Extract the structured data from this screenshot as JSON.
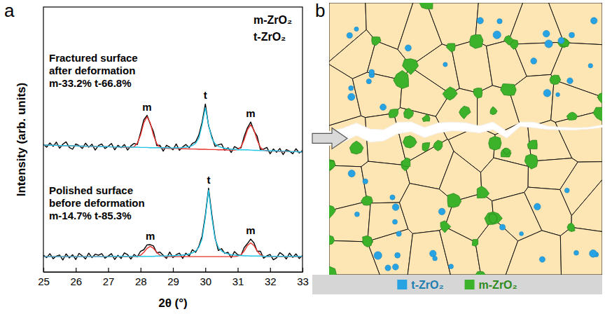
{
  "chart_data": {
    "type": "line",
    "panel_label": "a",
    "x_label": "2θ (°)",
    "y_label": "Intensity (arb. units)",
    "xlim": [
      25,
      33
    ],
    "xticks": [
      25,
      26,
      27,
      28,
      29,
      30,
      31,
      32,
      33
    ],
    "ylim": [
      0,
      100
    ],
    "tick_labels": "x",
    "x": [
      25,
      25.1,
      25.2,
      25.3,
      25.4,
      25.5,
      25.6,
      25.7,
      25.8,
      25.9,
      26,
      26.1,
      26.2,
      26.3,
      26.4,
      26.5,
      26.6,
      26.7,
      26.8,
      26.9,
      27,
      27.1,
      27.2,
      27.3,
      27.4,
      27.5,
      27.6,
      27.7,
      27.8,
      27.9,
      28,
      28.1,
      28.2,
      28.3,
      28.4,
      28.5,
      28.6,
      28.7,
      28.8,
      28.9,
      29,
      29.1,
      29.2,
      29.3,
      29.4,
      29.5,
      29.6,
      29.7,
      29.8,
      29.9,
      30,
      30.1,
      30.2,
      30.3,
      30.4,
      30.5,
      30.6,
      30.7,
      30.8,
      30.9,
      31,
      31.1,
      31.2,
      31.3,
      31.4,
      31.5,
      31.6,
      31.7,
      31.8,
      31.9,
      32,
      32.1,
      32.2,
      32.3,
      32.4,
      32.5,
      32.6,
      32.7,
      32.8,
      32.9,
      33
    ],
    "series": [
      {
        "color": "#000000",
        "line_style": "solid",
        "values": [
          48.2,
          47.1,
          48.7,
          47.4,
          49.0,
          46.7,
          48.2,
          49.1,
          47.0,
          46.3,
          48.3,
          47.7,
          46.6,
          48.6,
          47.1,
          48.2,
          46.0,
          47.7,
          48.3,
          46.6,
          47.4,
          48.5,
          46.1,
          47.8,
          46.9,
          48.1,
          46.0,
          47.6,
          48.5,
          48.1,
          52.6,
          57.4,
          59.1,
          55.8,
          52.9,
          47.7,
          47.8,
          45.6,
          47.8,
          47.1,
          46.1,
          48.3,
          45.9,
          47.2,
          48.1,
          46.9,
          48.5,
          49.1,
          51.7,
          56.5,
          63.4,
          55.2,
          51.1,
          47.4,
          48.0,
          48.3,
          45.9,
          46.9,
          45.1,
          47.3,
          46.6,
          46.8,
          51.2,
          54.4,
          56.6,
          53.3,
          51.2,
          46.2,
          46.4,
          47.0,
          44.6,
          46.4,
          45.2,
          46.6,
          44.3,
          46.2,
          45.6,
          44.6,
          46.5,
          44.9,
          45.8
        ]
      },
      {
        "color": "#e8302a",
        "line_style": "solid",
        "values": [
          47.9,
          47.9,
          47.8,
          47.8,
          47.8,
          47.7,
          47.7,
          47.7,
          47.6,
          47.6,
          47.6,
          47.5,
          47.5,
          47.5,
          47.4,
          47.4,
          47.4,
          47.3,
          47.3,
          47.3,
          47.3,
          47.2,
          47.2,
          47.2,
          47.1,
          47.1,
          47.1,
          47.0,
          47.3,
          48.6,
          51.7,
          56.3,
          58.6,
          56.2,
          51.6,
          48.4,
          47.0,
          46.7,
          46.7,
          46.6,
          46.6,
          46.6,
          46.5,
          46.5,
          46.5,
          46.4,
          46.4,
          46.4,
          46.3,
          46.3,
          46.3,
          46.2,
          46.2,
          46.2,
          46.1,
          46.1,
          46.1,
          46.0,
          46.0,
          46.0,
          46.2,
          47.2,
          49.9,
          53.7,
          55.5,
          53.6,
          49.8,
          47.0,
          46.0,
          45.7,
          45.6,
          45.6,
          45.6,
          45.5,
          45.5,
          45.5,
          45.4,
          45.4,
          45.4,
          45.3,
          45.3
        ]
      },
      {
        "color": "#22c3e6",
        "line_style": "solid",
        "values": [
          47.9,
          47.9,
          47.8,
          47.8,
          47.8,
          47.7,
          47.7,
          47.7,
          47.6,
          47.6,
          47.6,
          47.5,
          47.5,
          47.5,
          47.4,
          47.4,
          47.4,
          47.3,
          47.3,
          47.3,
          47.3,
          47.2,
          47.2,
          47.2,
          47.1,
          47.2,
          47.2,
          47.1,
          47.1,
          47.1,
          47.0,
          47.0,
          47.0,
          46.9,
          46.9,
          46.9,
          46.9,
          46.9,
          46.9,
          46.8,
          46.8,
          46.9,
          46.8,
          47.0,
          47.1,
          47.3,
          47.7,
          48.6,
          50.5,
          55.6,
          62.0,
          55.5,
          50.4,
          48.4,
          47.4,
          47.0,
          46.7,
          46.5,
          46.3,
          46.3,
          46.1,
          46.1,
          46.1,
          46.1,
          46.0,
          45.9,
          45.9,
          45.8,
          45.8,
          45.8,
          45.7,
          45.7,
          45.7,
          45.6,
          45.6,
          45.6,
          45.4,
          45.4,
          45.4,
          45.3,
          45.3
        ]
      },
      {
        "color": "#000000",
        "line_style": "solid",
        "values": [
          6.3,
          5.4,
          6.9,
          5.0,
          6.0,
          6.4,
          4.5,
          6.8,
          5.3,
          6.5,
          4.7,
          7.0,
          6.1,
          4.9,
          7.1,
          5.4,
          6.7,
          6.3,
          6.9,
          5.2,
          6.0,
          6.9,
          4.7,
          6.3,
          5.1,
          7.2,
          6.5,
          4.9,
          6.6,
          5.7,
          7.8,
          8.4,
          10.2,
          10.3,
          9.8,
          7.2,
          7.5,
          6.3,
          5.1,
          7.5,
          5.4,
          6.5,
          7.1,
          5.1,
          7.1,
          6.0,
          8.4,
          7.4,
          9.7,
          13.5,
          21.4,
          31.6,
          21.7,
          13.0,
          8.1,
          8.8,
          7.0,
          7.4,
          5.4,
          7.7,
          6.5,
          6.2,
          9.2,
          10.7,
          12.4,
          11.0,
          7.8,
          7.8,
          5.2,
          6.1,
          6.6,
          4.6,
          5.3,
          7.3,
          6.4,
          4.9,
          7.1,
          5.5,
          6.8,
          5.1,
          6.2
        ]
      },
      {
        "color": "#e8302a",
        "line_style": "solid",
        "values": [
          5.8,
          5.8,
          5.8,
          5.8,
          5.8,
          5.8,
          5.8,
          5.8,
          5.8,
          5.8,
          5.8,
          5.8,
          5.8,
          5.8,
          5.8,
          5.8,
          5.8,
          5.8,
          5.8,
          5.8,
          5.8,
          5.8,
          5.8,
          5.8,
          5.8,
          5.8,
          5.8,
          5.8,
          5.8,
          5.9,
          6.3,
          7.4,
          8.9,
          9.7,
          8.9,
          7.4,
          6.3,
          5.9,
          5.8,
          5.8,
          5.8,
          5.8,
          5.8,
          5.8,
          5.8,
          5.8,
          5.8,
          5.8,
          5.8,
          5.8,
          5.8,
          5.8,
          5.8,
          5.8,
          5.8,
          5.8,
          5.8,
          5.8,
          5.8,
          5.8,
          6.0,
          6.5,
          7.9,
          10.0,
          11.0,
          10.0,
          7.9,
          6.5,
          6.0,
          5.8,
          5.8,
          5.8,
          5.8,
          5.8,
          5.8,
          5.8,
          5.8,
          5.8,
          5.8,
          5.8,
          5.8
        ]
      },
      {
        "color": "#22c3e6",
        "line_style": "solid",
        "values": [
          5.8,
          5.8,
          5.8,
          5.8,
          5.8,
          5.8,
          5.8,
          5.8,
          5.8,
          5.8,
          5.8,
          5.8,
          5.8,
          5.8,
          5.8,
          5.8,
          5.8,
          5.8,
          5.8,
          5.8,
          5.8,
          5.9,
          5.9,
          5.9,
          5.9,
          5.9,
          5.9,
          5.9,
          5.9,
          5.9,
          5.9,
          5.9,
          5.9,
          5.9,
          5.9,
          6.0,
          6.0,
          6.0,
          6.0,
          6.1,
          6.1,
          6.2,
          6.2,
          6.4,
          6.5,
          6.8,
          7.2,
          7.9,
          9.3,
          12.5,
          20.6,
          30.9,
          20.6,
          12.5,
          9.3,
          7.9,
          7.2,
          6.8,
          6.5,
          6.4,
          6.2,
          6.2,
          6.1,
          6.1,
          6.0,
          6.0,
          6.0,
          6.0,
          5.9,
          5.9,
          5.9,
          5.9,
          5.9,
          5.9,
          5.9,
          5.9,
          5.9,
          5.9,
          5.9,
          5.9,
          5.9
        ]
      }
    ],
    "phase_labels": [
      "m-ZrO₂",
      "t-ZrO₂"
    ],
    "samples": [
      {
        "label": [
          "Fractured surface",
          "after deformation"
        ],
        "fractions": "m-33.2% t-66.8%"
      },
      {
        "label": [
          "Polished surface",
          "before deformation"
        ],
        "fractions": "m-14.7% t-85.3%"
      }
    ],
    "peak_labels": [
      {
        "text": "m",
        "x": 28.2,
        "y": 59.1
      },
      {
        "text": "t",
        "x": 30.0,
        "y": 63.4
      },
      {
        "text": "m",
        "x": 31.4,
        "y": 56.6
      },
      {
        "text": "m",
        "x": 28.3,
        "y": 10.3
      },
      {
        "text": "t",
        "x": 30.1,
        "y": 31.6
      },
      {
        "text": "m",
        "x": 31.4,
        "y": 12.4
      }
    ]
  },
  "diagram": {
    "panel_label": "b",
    "legend": [
      {
        "label": "t-ZrO₂",
        "color": "#27a2e2"
      },
      {
        "label": "m-ZrO₂",
        "color": "#3cb22a"
      }
    ]
  }
}
